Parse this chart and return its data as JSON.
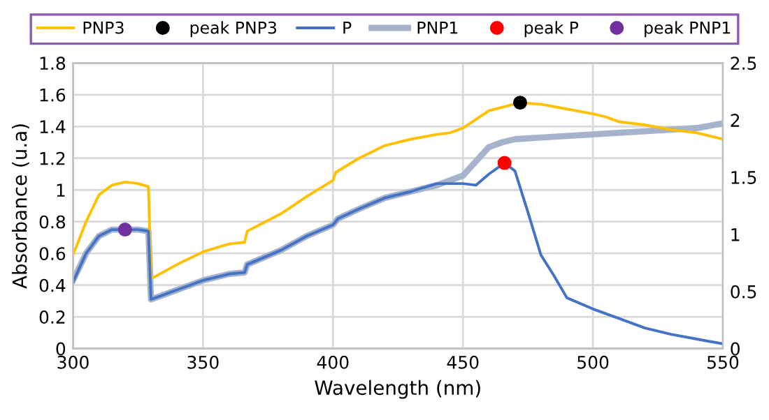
{
  "chart_data": {
    "type": "line",
    "xlabel": "Wavelength (nm)",
    "ylabel": "Absorbance (u.a)",
    "xlim": [
      300,
      550
    ],
    "xticks": [
      300,
      350,
      400,
      450,
      500,
      550
    ],
    "ylim": [
      0,
      1.8
    ],
    "yticks": [
      0,
      0.2,
      0.4,
      0.6,
      0.8,
      1,
      1.2,
      1.4,
      1.6,
      1.8
    ],
    "y2lim": [
      0,
      2.5
    ],
    "y2ticks": [
      0,
      0.5,
      1,
      1.5,
      2,
      2.5
    ],
    "grid": true,
    "legend": "top",
    "series": [
      {
        "name": "PNP3",
        "color": "#ffc000",
        "x": [
          300,
          305,
          310,
          315,
          320,
          325,
          329,
          330,
          340,
          350,
          360,
          366,
          367,
          380,
          390,
          400,
          401,
          410,
          420,
          430,
          440,
          445,
          450,
          460,
          472,
          480,
          490,
          500,
          505,
          510,
          520,
          530,
          540,
          550
        ],
        "values": [
          0.59,
          0.8,
          0.97,
          1.03,
          1.05,
          1.04,
          1.02,
          0.44,
          0.53,
          0.61,
          0.66,
          0.67,
          0.74,
          0.85,
          0.96,
          1.06,
          1.11,
          1.2,
          1.28,
          1.32,
          1.35,
          1.36,
          1.39,
          1.5,
          1.55,
          1.54,
          1.51,
          1.48,
          1.46,
          1.43,
          1.41,
          1.38,
          1.36,
          1.32
        ]
      },
      {
        "name": "peak PNP3",
        "type": "scatter",
        "marker": "circle",
        "color": "#000000",
        "x": [
          472
        ],
        "values": [
          1.55
        ]
      },
      {
        "name": "P",
        "color": "#4472c4",
        "x": [
          300,
          305,
          310,
          315,
          320,
          325,
          329,
          330,
          340,
          350,
          360,
          366,
          367,
          380,
          390,
          400,
          402,
          410,
          420,
          430,
          440,
          450,
          455,
          460,
          466,
          470,
          475,
          480,
          485,
          490,
          500,
          510,
          520,
          530,
          540,
          550
        ],
        "values": [
          0.42,
          0.6,
          0.71,
          0.75,
          0.75,
          0.75,
          0.74,
          0.31,
          0.37,
          0.43,
          0.47,
          0.48,
          0.53,
          0.62,
          0.71,
          0.78,
          0.82,
          0.88,
          0.95,
          0.99,
          1.04,
          1.04,
          1.03,
          1.1,
          1.17,
          1.12,
          0.86,
          0.59,
          0.46,
          0.32,
          0.25,
          0.19,
          0.13,
          0.09,
          0.06,
          0.03
        ]
      },
      {
        "name": "PNP1",
        "color": "#a5b4cc",
        "x": [
          300,
          305,
          310,
          315,
          320,
          325,
          329,
          330,
          340,
          350,
          360,
          366,
          367,
          380,
          390,
          400,
          402,
          410,
          420,
          430,
          440,
          450,
          460,
          465,
          470,
          480,
          500,
          520,
          530,
          540,
          550
        ],
        "values": [
          0.43,
          0.6,
          0.71,
          0.75,
          0.75,
          0.75,
          0.74,
          0.31,
          0.37,
          0.43,
          0.47,
          0.48,
          0.53,
          0.62,
          0.71,
          0.78,
          0.82,
          0.88,
          0.95,
          0.99,
          1.03,
          1.09,
          1.27,
          1.3,
          1.32,
          1.33,
          1.35,
          1.37,
          1.38,
          1.39,
          1.42
        ]
      },
      {
        "name": "peak P",
        "type": "scatter",
        "marker": "circle",
        "color": "#ff0000",
        "x": [
          466
        ],
        "values": [
          1.17
        ]
      },
      {
        "name": "peak PNP1",
        "type": "scatter",
        "marker": "circle",
        "color": "#7030a0",
        "x": [
          320
        ],
        "values": [
          0.75
        ]
      }
    ]
  }
}
